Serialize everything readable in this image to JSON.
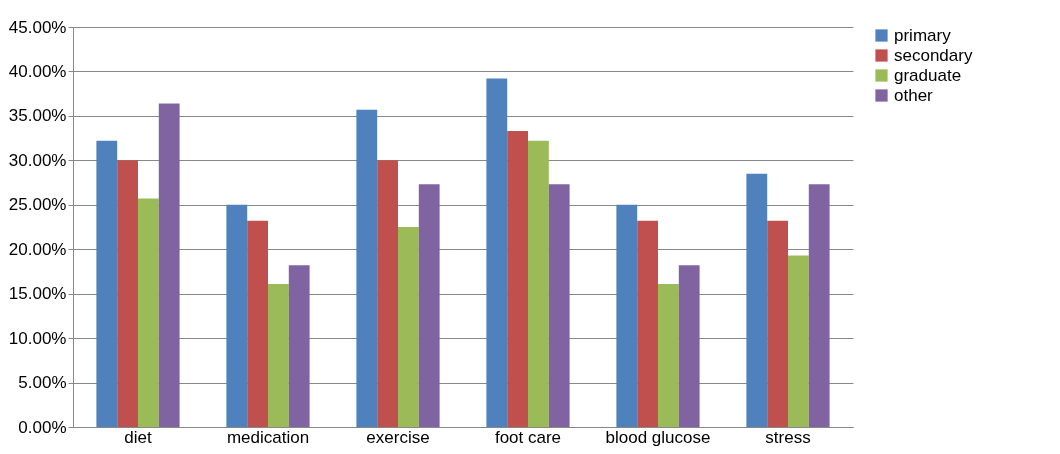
{
  "chart_data": {
    "type": "bar",
    "categories": [
      "diet",
      "medication",
      "exercise",
      "foot care",
      "blood glucose",
      "stress"
    ],
    "series": [
      {
        "name": "primary",
        "color": "#4f81bd",
        "values": [
          32.2,
          25.0,
          35.7,
          39.2,
          25.0,
          28.5
        ]
      },
      {
        "name": "secondary",
        "color": "#c0504d",
        "values": [
          30.0,
          23.2,
          30.0,
          33.3,
          23.2,
          23.2
        ]
      },
      {
        "name": "graduate",
        "color": "#9bbb59",
        "values": [
          25.7,
          16.1,
          22.5,
          32.2,
          16.1,
          19.3
        ]
      },
      {
        "name": "other",
        "color": "#8064a2",
        "values": [
          36.4,
          18.2,
          27.3,
          27.3,
          18.2,
          27.3
        ]
      }
    ],
    "ylim": [
      0,
      45
    ],
    "yticks": [
      {
        "value": 0,
        "label": "0.00%"
      },
      {
        "value": 5,
        "label": "5.00%"
      },
      {
        "value": 10,
        "label": "10.00%"
      },
      {
        "value": 15,
        "label": "15.00%"
      },
      {
        "value": 20,
        "label": "20.00%"
      },
      {
        "value": 25,
        "label": "25.00%"
      },
      {
        "value": 30,
        "label": "30.00%"
      },
      {
        "value": 35,
        "label": "35.00%"
      },
      {
        "value": 40,
        "label": "40.00%"
      },
      {
        "value": 45,
        "label": "45.00%"
      }
    ],
    "grid": "y",
    "legend": "right"
  }
}
